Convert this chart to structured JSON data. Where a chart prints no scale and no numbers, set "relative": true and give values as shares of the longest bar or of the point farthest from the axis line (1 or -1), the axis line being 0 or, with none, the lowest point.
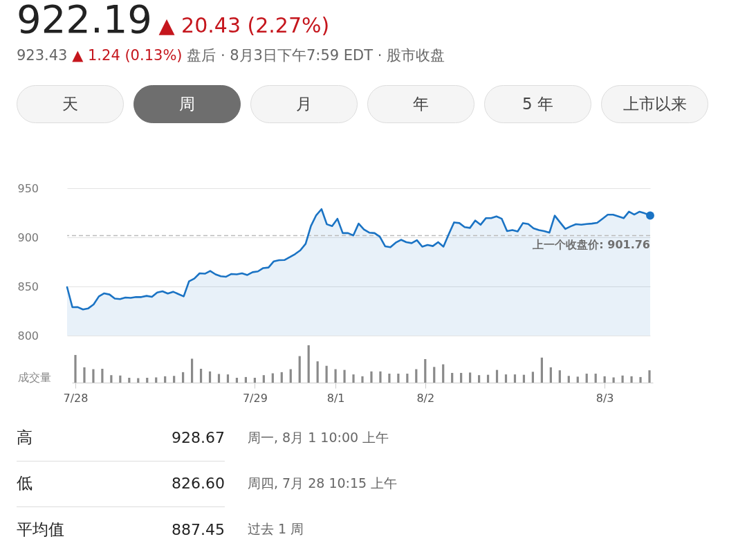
{
  "chart_data": [
    {
      "type": "area",
      "title": "922.19 ▲ 20.43 (2.27%)",
      "subtitle": "923.43 ▲ 1.24 (0.13%) 盘后 · 8月3日下午7:59 EDT · 股市收盘",
      "categories": [
        null,
        null,
        null,
        null,
        null,
        null,
        null,
        null,
        null,
        null,
        null,
        null,
        null,
        null,
        null,
        null,
        null,
        null,
        null,
        null,
        null,
        null,
        null,
        null,
        null,
        null,
        null,
        null,
        null,
        null,
        null,
        null,
        null,
        null,
        null,
        null,
        null,
        null,
        null,
        null,
        null,
        null,
        null,
        null,
        null,
        null,
        null,
        null,
        null,
        null,
        null,
        null,
        null,
        null,
        null,
        null,
        null,
        null,
        null,
        null,
        null,
        null,
        null,
        null,
        null,
        null,
        null,
        null,
        null,
        null,
        null,
        null,
        null,
        null,
        null,
        null,
        null,
        null,
        null,
        null,
        null,
        null,
        null,
        null,
        null,
        null,
        null,
        null,
        null,
        null,
        null,
        null,
        null,
        null,
        null,
        null,
        null,
        null,
        null,
        null,
        null,
        null,
        null,
        null,
        null,
        null,
        null,
        null,
        null,
        null,
        null
      ],
      "series": [
        {
          "color": "#1a73c4",
          "values": [
            849.3,
            828.9,
            829,
            826.6,
            827.7,
            831.7,
            839.9,
            843,
            841.8,
            837.7,
            837.2,
            838.7,
            838.4,
            839.2,
            839.2,
            840.4,
            839.4,
            843.9,
            845.1,
            842.8,
            844.6,
            842.3,
            839.9,
            855.2,
            858,
            863.4,
            863,
            865.8,
            862.3,
            860.4,
            859.9,
            862.7,
            862.3,
            863.4,
            861.7,
            864.5,
            865.3,
            868.7,
            869.3,
            875.6,
            876.8,
            876.9,
            879.8,
            882.9,
            886.8,
            893.4,
            911.5,
            922.5,
            928.7,
            913.3,
            911.5,
            918.9,
            904.3,
            904.3,
            901.9,
            914,
            908,
            904.8,
            904.3,
            900.6,
            890.9,
            889.9,
            894.6,
            897.5,
            895.1,
            894.1,
            897.1,
            890.5,
            892.3,
            891.1,
            895.1,
            890.5,
            903.1,
            915.2,
            914.5,
            910.4,
            909.6,
            917.1,
            912.8,
            919.5,
            919.5,
            921.3,
            918.9,
            906.3,
            907.4,
            906,
            914.5,
            913.5,
            909.2,
            907.4,
            906.3,
            904.8,
            922.1,
            915.2,
            908.5,
            911.2,
            913.4,
            912.8,
            913.6,
            914,
            914.8,
            918.9,
            923.1,
            923.1,
            921.3,
            919.5,
            926.1,
            923.2,
            926.1,
            924.4,
            922.2
          ]
        }
      ],
      "ylim": [
        800,
        950
      ],
      "yticks": [
        800,
        850,
        900,
        950
      ],
      "grid": "y",
      "tick_labels": "y",
      "ref_lines": [
        {
          "axis": "y",
          "value": 901.76,
          "label": "上一个收盘价: 901.76",
          "color": "#bbbbbb",
          "line_style": "dashed"
        }
      ],
      "annotations": [
        "天",
        "周",
        "月",
        "年",
        "5 年",
        "上市以来"
      ]
    },
    {
      "type": "bar",
      "relative": true,
      "ylabel": "成交量",
      "categories": [
        "7/28",
        null,
        null,
        null,
        null,
        null,
        null,
        null,
        null,
        null,
        null,
        null,
        null,
        null,
        null,
        null,
        null,
        null,
        null,
        null,
        "7/29",
        null,
        null,
        null,
        null,
        null,
        null,
        null,
        null,
        "8/1",
        null,
        null,
        null,
        null,
        null,
        null,
        null,
        null,
        null,
        "8/2",
        null,
        null,
        null,
        null,
        null,
        null,
        null,
        null,
        null,
        null,
        null,
        null,
        null,
        null,
        null,
        null,
        null,
        null,
        null,
        "8/3",
        null,
        null,
        null,
        null,
        null
      ],
      "series": [
        {
          "color": "#8a8a8a",
          "values": [
            0.74,
            0.41,
            0.36,
            0.37,
            0.2,
            0.19,
            0.13,
            0.12,
            0.13,
            0.14,
            0.17,
            0.18,
            0.28,
            0.64,
            0.37,
            0.3,
            0.23,
            0.22,
            0.13,
            0.15,
            0.13,
            0.2,
            0.25,
            0.28,
            0.36,
            0.71,
            1,
            0.57,
            0.45,
            0.36,
            0.34,
            0.22,
            0.17,
            0.3,
            0.3,
            0.24,
            0.24,
            0.24,
            0.36,
            0.63,
            0.42,
            0.49,
            0.26,
            0.26,
            0.27,
            0.2,
            0.21,
            0.34,
            0.22,
            0.22,
            0.21,
            0.29,
            0.67,
            0.41,
            0.33,
            0.18,
            0.16,
            0.24,
            0.24,
            0.17,
            0.14,
            0.19,
            0.17,
            0.15,
            0.33
          ]
        }
      ],
      "annotations": [
        "高",
        "928.67",
        "周一, 8月 1 10:00 上午",
        "低",
        "826.60",
        "周四, 7月 28 10:15 上午",
        "平均值",
        "887.45",
        "过去 1 周"
      ]
    }
  ]
}
